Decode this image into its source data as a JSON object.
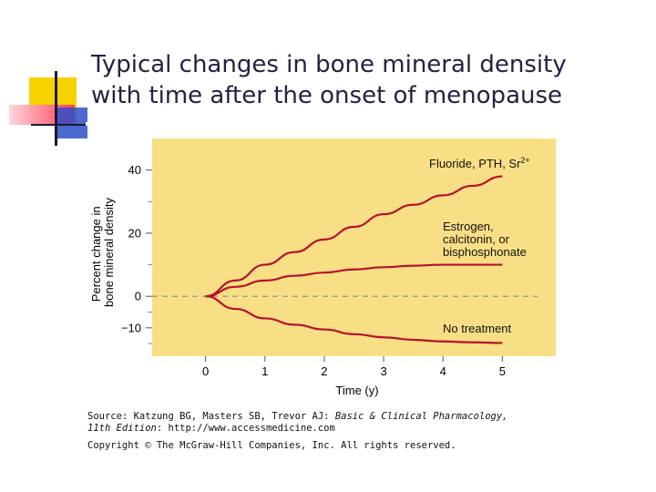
{
  "slide": {
    "title_line1": "Typical changes in bone mineral density",
    "title_line2": "with time after the onset of menopause"
  },
  "colors": {
    "plot_bg": "#f8df85",
    "curve": "#b5122e",
    "title_text": "#222244",
    "deco_yellow": "#f6d300",
    "deco_red": "#ff3d55",
    "deco_blue": "#2e4fc9"
  },
  "source": {
    "prefix": "Source: Katzung BG, Masters SB, Trevor AJ: ",
    "book": "Basic & Clinical Pharmacology,",
    "edition": "11th Edition",
    "url_text": ": http://www.accessmedicine.com",
    "copyright": "Copyright © The McGraw-Hill Companies, Inc. All rights reserved."
  },
  "chart_data": {
    "type": "line",
    "title": "",
    "xlabel": "Time (y)",
    "ylabel_lines": [
      "Percent change in",
      "bone mineral density"
    ],
    "xlim": [
      -0.9,
      5.9
    ],
    "ylim": [
      -19,
      50
    ],
    "x_ticks": [
      0,
      1,
      2,
      3,
      4,
      5
    ],
    "y_ticks": [
      40,
      20,
      0,
      -10
    ],
    "y_tick_labels": [
      "40",
      "20",
      "0",
      "−10"
    ],
    "baseline_y": 0,
    "grid": false,
    "series": [
      {
        "name": "Fluoride, PTH, Sr",
        "name_superscript": "2+",
        "x": [
          0,
          0.5,
          1,
          1.5,
          2,
          2.5,
          3,
          3.5,
          4,
          4.5,
          5
        ],
        "y": [
          0,
          5,
          10,
          14,
          18,
          22,
          26,
          29,
          32,
          35,
          38
        ]
      },
      {
        "name": "Estrogen, calcitonin, or bisphosphonate",
        "label_lines": [
          "Estrogen,",
          "calcitonin, or",
          "bisphosphonate"
        ],
        "x": [
          0,
          0.5,
          1,
          1.5,
          2,
          2.5,
          3,
          3.5,
          4,
          4.5,
          5
        ],
        "y": [
          0,
          3,
          5,
          6.5,
          7.5,
          8.5,
          9.2,
          9.7,
          10,
          10,
          10
        ]
      },
      {
        "name": "No treatment",
        "x": [
          0,
          0.5,
          1,
          1.5,
          2,
          2.5,
          3,
          3.5,
          4,
          4.5,
          5
        ],
        "y": [
          0,
          -4,
          -7,
          -9,
          -10.5,
          -12,
          -13,
          -13.8,
          -14.3,
          -14.6,
          -14.8
        ]
      }
    ]
  }
}
